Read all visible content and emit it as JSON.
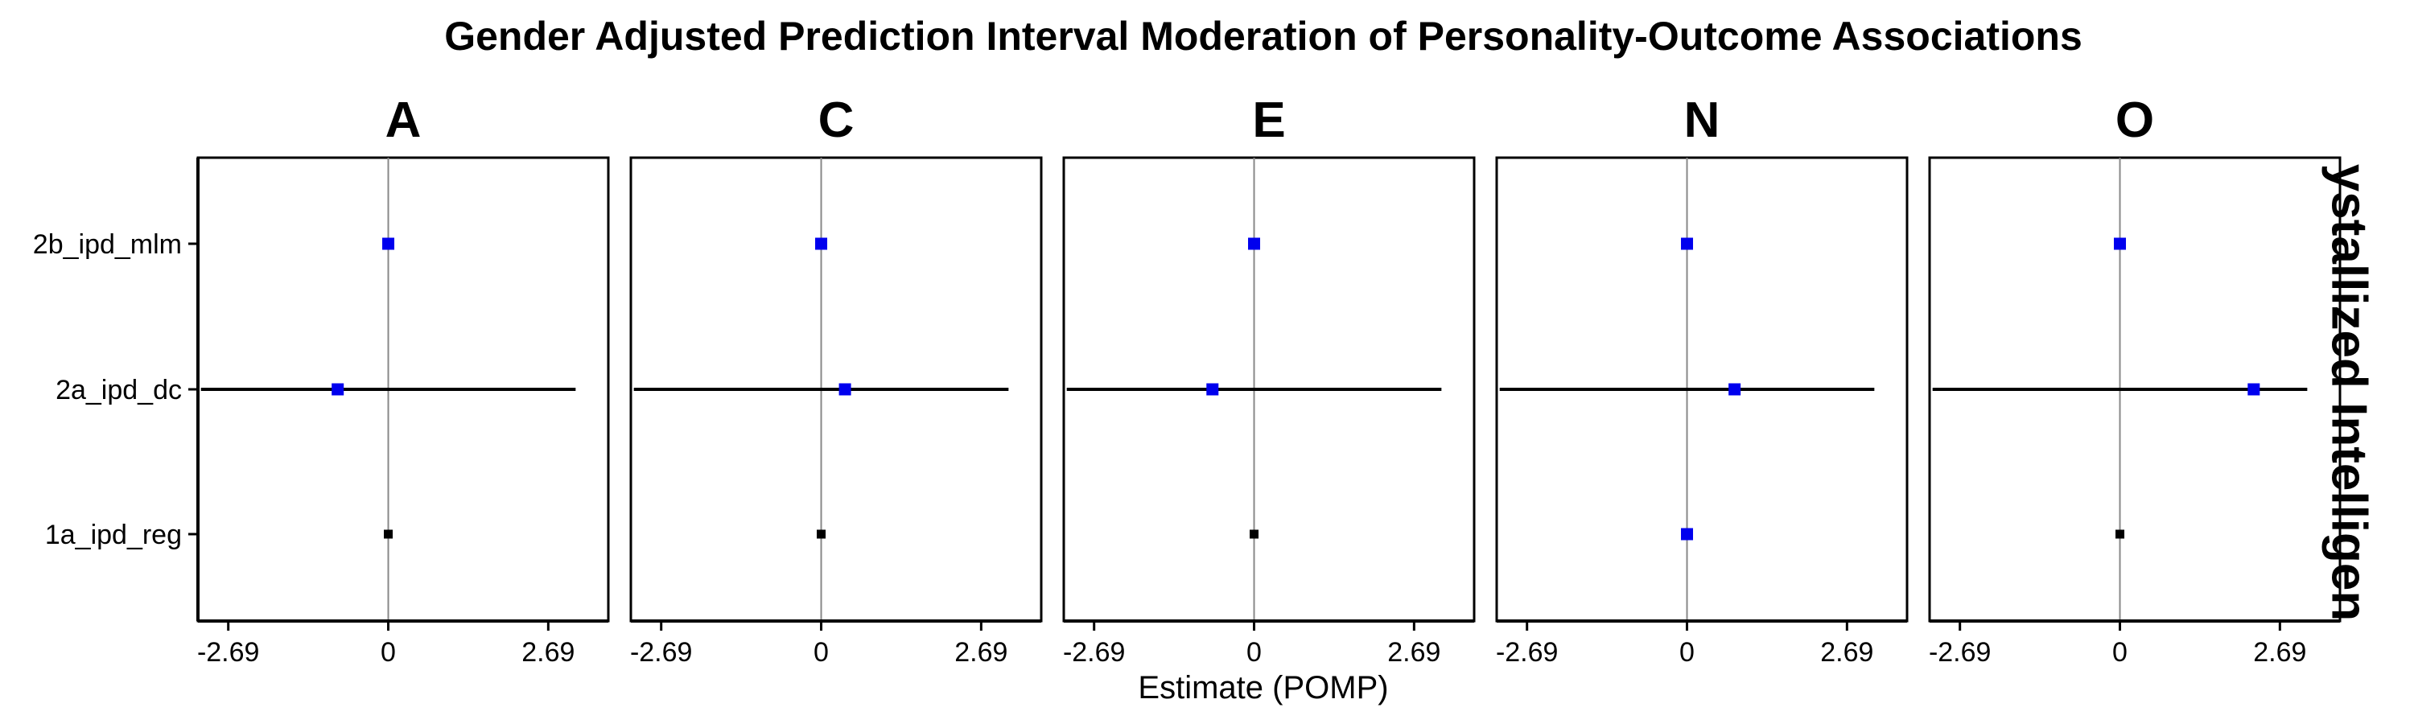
{
  "chart_data": {
    "type": "scatter",
    "title": "Gender Adjusted Prediction Interval Moderation of Personality-Outcome Associations",
    "xlabel": "Estimate (POMP)",
    "ylabel": "",
    "strip_right": "ystallized Intelligen",
    "y_categories": [
      "2b_ipd_mlm",
      "2a_ipd_dc",
      "1a_ipd_reg"
    ],
    "x_ticks": [
      -2.69,
      0,
      2.69
    ],
    "x_tick_labels": [
      "-2.69",
      "0",
      "2.69"
    ],
    "xlim": [
      -3.2,
      3.7
    ],
    "grid": false,
    "legend": "none",
    "colors": {
      "highlight": "#0000ee",
      "default": "#000000",
      "zero_line": "#888888"
    },
    "facets": [
      {
        "label": "A",
        "points": [
          {
            "model": "2b_ipd_mlm",
            "estimate": 0.0,
            "lower": null,
            "upper": null,
            "color": "#0000ee"
          },
          {
            "model": "2a_ipd_dc",
            "estimate": -0.85,
            "lower": -3.15,
            "upper": 3.15,
            "color": "#0000ee"
          },
          {
            "model": "1a_ipd_reg",
            "estimate": 0.0,
            "lower": null,
            "upper": null,
            "color": "#000000"
          }
        ]
      },
      {
        "label": "C",
        "points": [
          {
            "model": "2b_ipd_mlm",
            "estimate": 0.0,
            "lower": null,
            "upper": null,
            "color": "#0000ee"
          },
          {
            "model": "2a_ipd_dc",
            "estimate": 0.4,
            "lower": -3.15,
            "upper": 3.15,
            "color": "#0000ee"
          },
          {
            "model": "1a_ipd_reg",
            "estimate": 0.0,
            "lower": null,
            "upper": null,
            "color": "#000000"
          }
        ]
      },
      {
        "label": "E",
        "points": [
          {
            "model": "2b_ipd_mlm",
            "estimate": 0.0,
            "lower": null,
            "upper": null,
            "color": "#0000ee"
          },
          {
            "model": "2a_ipd_dc",
            "estimate": -0.7,
            "lower": -3.15,
            "upper": 3.15,
            "color": "#0000ee"
          },
          {
            "model": "1a_ipd_reg",
            "estimate": 0.0,
            "lower": null,
            "upper": null,
            "color": "#000000"
          }
        ]
      },
      {
        "label": "N",
        "points": [
          {
            "model": "2b_ipd_mlm",
            "estimate": 0.0,
            "lower": null,
            "upper": null,
            "color": "#0000ee"
          },
          {
            "model": "2a_ipd_dc",
            "estimate": 0.8,
            "lower": -3.15,
            "upper": 3.15,
            "color": "#0000ee"
          },
          {
            "model": "1a_ipd_reg",
            "estimate": 0.0,
            "lower": null,
            "upper": null,
            "color": "#0000ee"
          }
        ]
      },
      {
        "label": "O",
        "points": [
          {
            "model": "2b_ipd_mlm",
            "estimate": 0.0,
            "lower": null,
            "upper": null,
            "color": "#0000ee"
          },
          {
            "model": "2a_ipd_dc",
            "estimate": 2.25,
            "lower": -3.15,
            "upper": 3.15,
            "color": "#0000ee"
          },
          {
            "model": "1a_ipd_reg",
            "estimate": 0.0,
            "lower": null,
            "upper": null,
            "color": "#000000"
          }
        ]
      }
    ]
  }
}
